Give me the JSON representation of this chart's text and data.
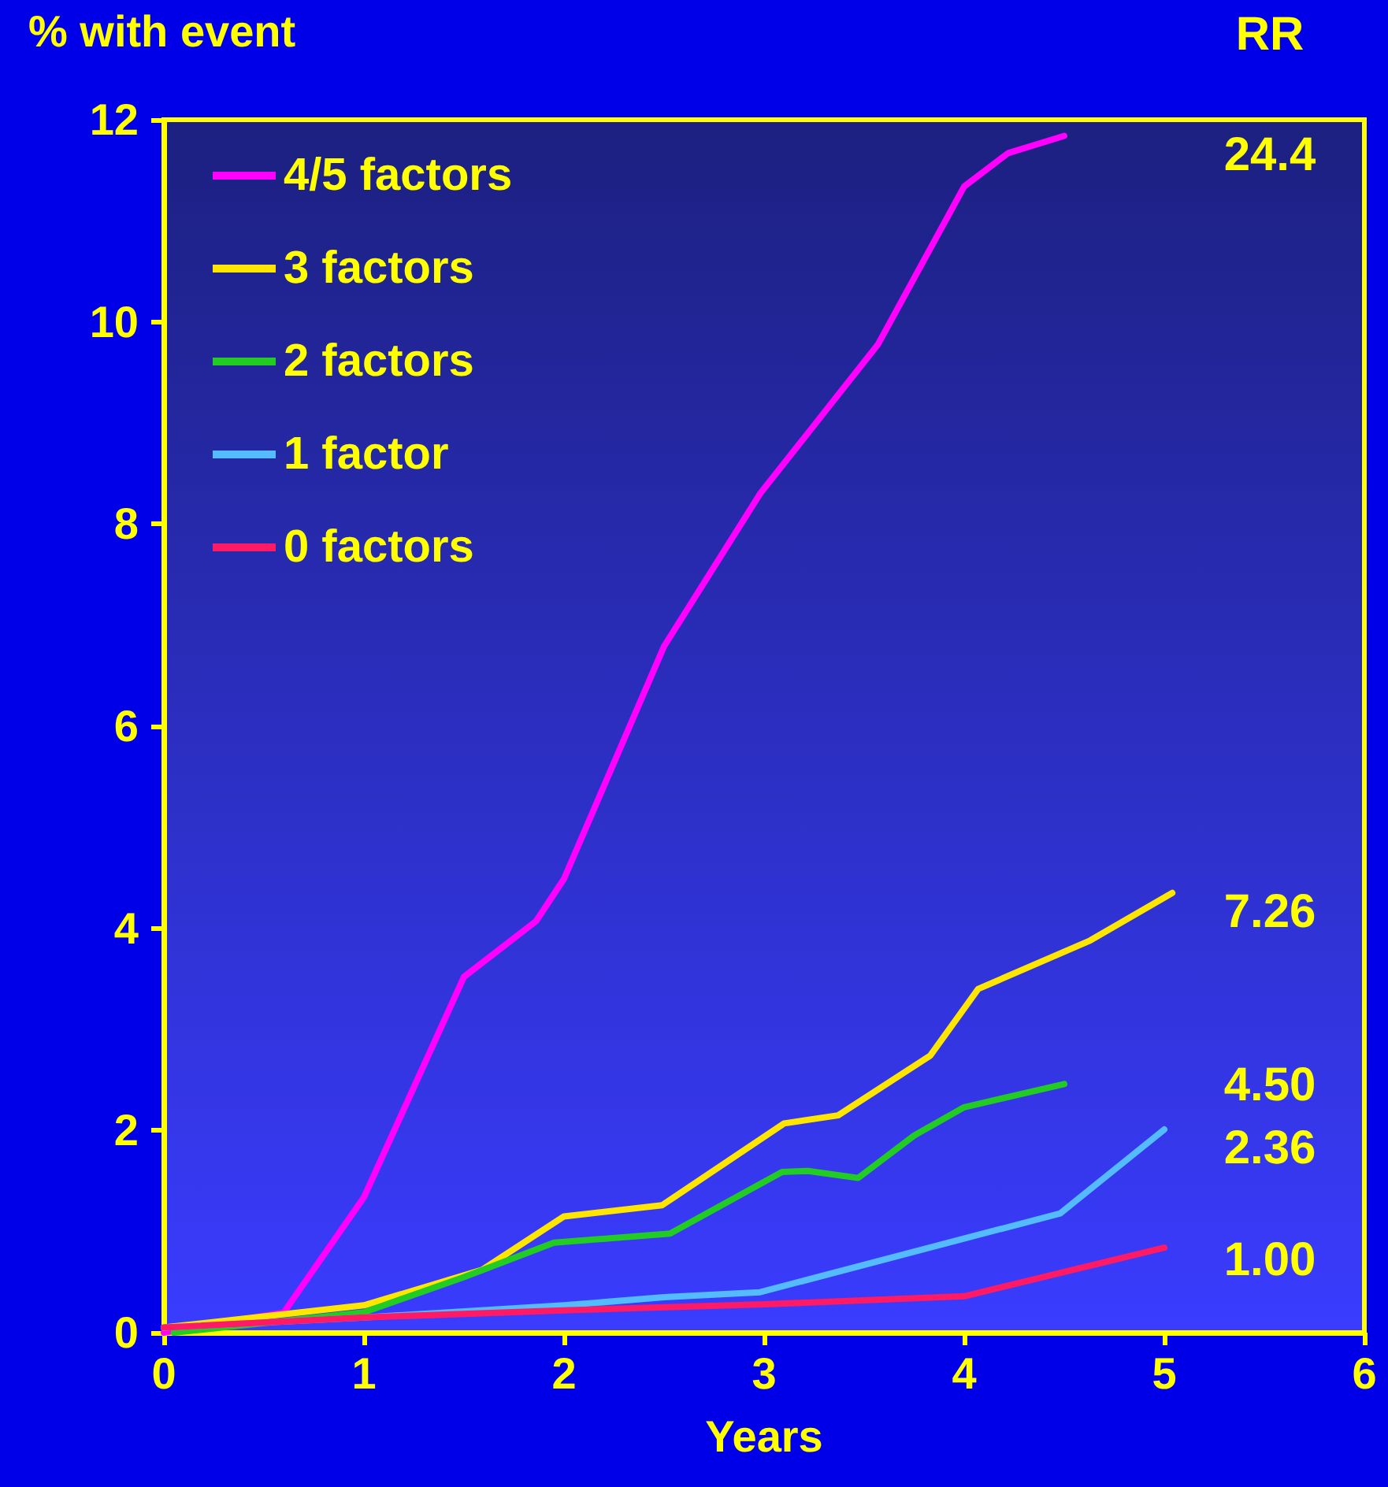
{
  "chart_data": {
    "type": "line",
    "xlabel": "Years",
    "ylabel": "% with event",
    "xlim": [
      0,
      6
    ],
    "xticks": [
      0,
      1,
      2,
      3,
      4,
      5,
      6
    ],
    "ylim": [
      0,
      12
    ],
    "yticks": [
      0,
      2,
      4,
      6,
      8,
      10,
      12
    ],
    "grid": false,
    "legend": "top left",
    "marker": "none",
    "line_style": "solid",
    "series": [
      {
        "name": "4/5 factors",
        "color": "#ff00ff",
        "x": [
          0,
          0.6,
          1.0,
          1.5,
          1.86,
          2.0,
          2.5,
          2.98,
          3.57,
          4.0,
          4.22,
          4.5
        ],
        "values": [
          0.0,
          0.2,
          1.34,
          3.52,
          4.07,
          4.49,
          6.79,
          8.3,
          9.78,
          11.34,
          11.67,
          11.84
        ]
      },
      {
        "name": "3 factors",
        "color": "#ffe600",
        "x": [
          0,
          1.0,
          1.59,
          2.0,
          2.49,
          3.1,
          3.37,
          3.83,
          4.07,
          4.63,
          5.04
        ],
        "values": [
          0.05,
          0.27,
          0.62,
          1.15,
          1.26,
          2.07,
          2.15,
          2.74,
          3.4,
          3.88,
          4.35
        ]
      },
      {
        "name": "2 factors",
        "color": "#22cc22",
        "x": [
          0.05,
          1.0,
          1.5,
          1.95,
          2.53,
          3.09,
          3.22,
          3.47,
          3.75,
          4.0,
          4.5
        ],
        "values": [
          0,
          0.2,
          0.55,
          0.89,
          0.98,
          1.59,
          1.6,
          1.53,
          1.95,
          2.23,
          2.46
        ]
      },
      {
        "name": "1 factor",
        "color": "#55bbff",
        "x": [
          0,
          1.0,
          2.0,
          2.5,
          2.98,
          4.48,
          5.0
        ],
        "values": [
          0.05,
          0.15,
          0.27,
          0.35,
          0.4,
          1.18,
          2.01
        ]
      },
      {
        "name": "0 factors",
        "color": "#ff1a66",
        "x": [
          0,
          1.0,
          2.0,
          3.0,
          4.0,
          5.0
        ],
        "values": [
          0.05,
          0.15,
          0.22,
          0.28,
          0.36,
          0.84
        ]
      }
    ],
    "annotations": [
      "RR",
      "24.4",
      "7.26",
      "4.50",
      "2.36",
      "1.00"
    ]
  }
}
